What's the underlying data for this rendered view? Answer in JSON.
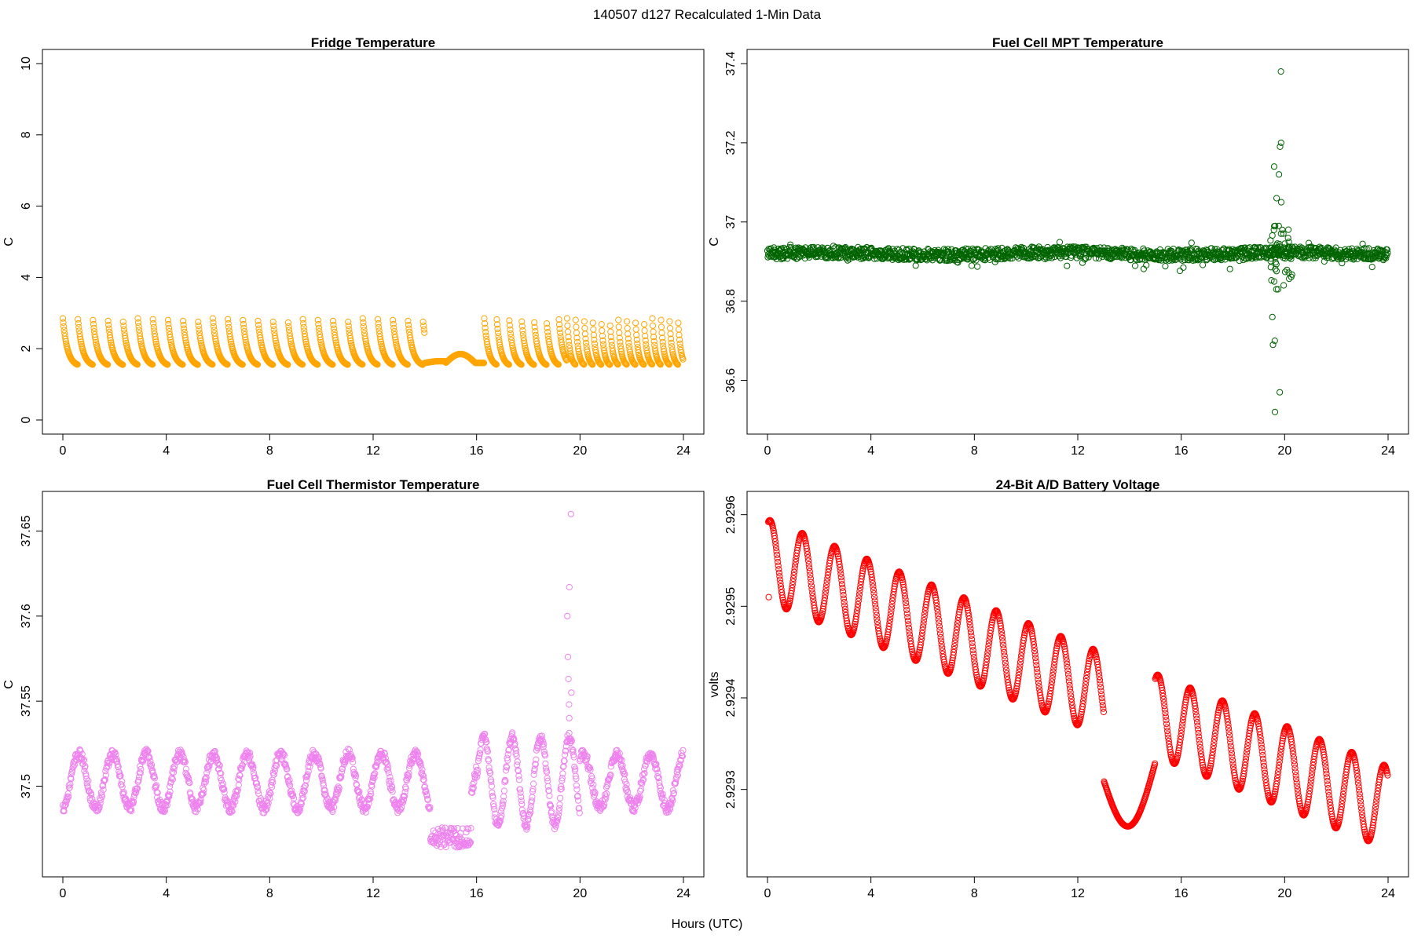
{
  "figure": {
    "title": "140507   d127   Recalculated 1-Min Data",
    "xlabel": "Hours (UTC)"
  },
  "chart_data": [
    {
      "id": "fridge",
      "type": "scatter",
      "title": "Fridge Temperature",
      "ylabel": "C",
      "color": "#FFA500",
      "xlim": [
        0,
        24
      ],
      "ylim": [
        0,
        10
      ],
      "xticks": [
        0,
        4,
        8,
        12,
        16,
        20,
        24
      ],
      "yticks": [
        0,
        2,
        4,
        6,
        8,
        10
      ],
      "series": [
        {
          "pattern": "sawtooth",
          "baseline": 1.55,
          "peak": 2.85,
          "segments": [
            {
              "start": 0.0,
              "end": 14.0,
              "cycle_hours": 0.58
            },
            {
              "start": 14.0,
              "end": 16.3,
              "plateau": [
                1.6,
                1.85
              ]
            },
            {
              "start": 16.3,
              "end": 19.5,
              "cycle_hours": 0.48
            },
            {
              "start": 19.5,
              "end": 24.0,
              "cycle_hours": 0.33
            }
          ]
        }
      ]
    },
    {
      "id": "mpt",
      "type": "scatter",
      "title": "Fuel Cell MPT Temperature",
      "ylabel": "C",
      "color": "#006400",
      "xlim": [
        0,
        24
      ],
      "ylim": [
        36.5,
        37.4
      ],
      "xticks": [
        0,
        4,
        8,
        12,
        16,
        20,
        24
      ],
      "yticks": [
        36.6,
        36.8,
        37.0,
        37.2,
        37.4
      ],
      "series": [
        {
          "pattern": "noise",
          "level": 36.92,
          "spread": 0.015,
          "spike_x": 19.7,
          "spike_values": [
            37.38,
            37.2,
            37.19,
            37.14,
            37.12,
            37.06,
            37.05,
            36.99,
            36.98,
            36.83,
            36.83,
            36.76,
            36.69,
            36.7,
            36.57,
            36.52
          ]
        }
      ]
    },
    {
      "id": "thermistor",
      "type": "scatter",
      "title": "Fuel Cell Thermistor Temperature",
      "ylabel": "C",
      "color": "#EE82EE",
      "xlim": [
        0,
        24
      ],
      "ylim": [
        37.455,
        37.665
      ],
      "xticks": [
        0,
        4,
        8,
        12,
        16,
        20,
        24
      ],
      "yticks": [
        37.5,
        37.55,
        37.6,
        37.65
      ],
      "series": [
        {
          "pattern": "oscillation",
          "center": 37.503,
          "amplitude": 0.016,
          "period_hours": 1.3,
          "dip": {
            "start": 14.2,
            "end": 15.8,
            "value": 37.47
          },
          "spike_x": 19.6,
          "spike_values": [
            37.66,
            37.617,
            37.6,
            37.576,
            37.563,
            37.555,
            37.548,
            37.54
          ]
        }
      ]
    },
    {
      "id": "battery",
      "type": "scatter",
      "title": "24-Bit A/D Battery Voltage",
      "ylabel": "volts",
      "color": "#FF0000",
      "xlim": [
        0,
        24
      ],
      "ylim": [
        2.92922,
        2.92961
      ],
      "xticks": [
        0,
        4,
        8,
        12,
        16,
        20,
        24
      ],
      "yticks": [
        2.9293,
        2.9294,
        2.9295,
        2.9296
      ],
      "series": [
        {
          "pattern": "damped-trend",
          "start_value": 2.92955,
          "end_value": 2.92928,
          "amplitude": 4.5e-05,
          "period_hours": 1.25,
          "first_point": [
            0.05,
            2.92951
          ],
          "step": {
            "start": 13.0,
            "end": 15.0,
            "value": 2.92931
          }
        }
      ]
    }
  ]
}
